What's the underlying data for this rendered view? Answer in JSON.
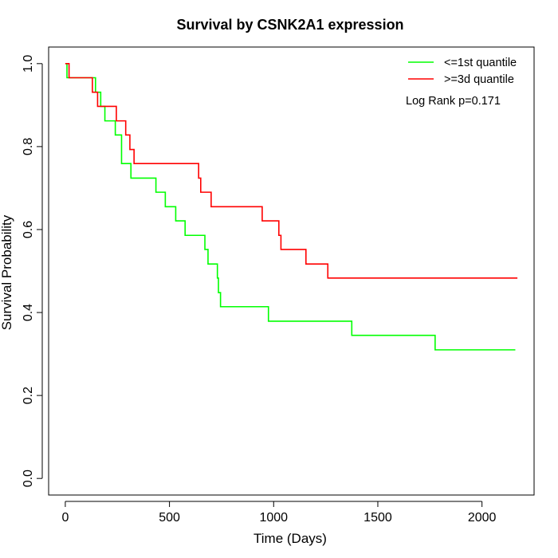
{
  "chart_data": {
    "type": "line",
    "title": "Survival by CSNK2A1 expression",
    "xlabel": "Time (Days)",
    "ylabel": "Survival Probability",
    "xlim": [
      -80,
      2250
    ],
    "ylim": [
      -0.04,
      1.04
    ],
    "x_ticks": [
      0,
      500,
      1000,
      1500,
      2000
    ],
    "y_ticks": [
      0.0,
      0.2,
      0.4,
      0.6,
      0.8,
      1.0
    ],
    "x_tick_labels": [
      "0",
      "500",
      "1000",
      "1500",
      "2000"
    ],
    "y_tick_labels": [
      "0.0",
      "0.2",
      "0.4",
      "0.6",
      "0.8",
      "1.0"
    ],
    "grid": false,
    "legend_position": "top-right",
    "annotation": "Log Rank p=0.171",
    "series": [
      {
        "name": "<=1st quantile",
        "color": "#00ff00",
        "step": true,
        "x": [
          0,
          8,
          145,
          170,
          190,
          240,
          270,
          315,
          435,
          480,
          530,
          575,
          670,
          685,
          695,
          730,
          735,
          740,
          745,
          975,
          1375,
          1775,
          2160
        ],
        "y": [
          1.0,
          0.966,
          0.931,
          0.897,
          0.862,
          0.828,
          0.759,
          0.724,
          0.69,
          0.655,
          0.621,
          0.586,
          0.552,
          0.517,
          0.517,
          0.483,
          0.448,
          0.448,
          0.414,
          0.379,
          0.345,
          0.31,
          0.31
        ]
      },
      {
        "name": ">=3d quantile",
        "color": "#ff0000",
        "step": true,
        "x": [
          0,
          18,
          130,
          155,
          245,
          290,
          310,
          320,
          330,
          640,
          650,
          665,
          700,
          945,
          1025,
          1035,
          1155,
          1260,
          2170
        ],
        "y": [
          1.0,
          0.966,
          0.931,
          0.897,
          0.862,
          0.828,
          0.793,
          0.793,
          0.759,
          0.724,
          0.69,
          0.69,
          0.655,
          0.621,
          0.586,
          0.552,
          0.517,
          0.483,
          0.483
        ]
      }
    ]
  }
}
